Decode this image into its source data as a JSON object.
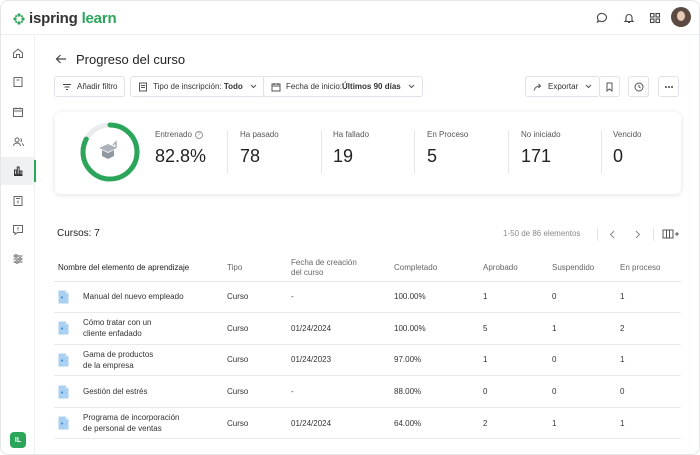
{
  "app": {
    "logo_text_1": "ispring",
    "logo_text_2": " learn",
    "brand_color": "#2aa55a",
    "user_initials": "IL"
  },
  "topbar_icons": [
    "chat-icon",
    "bell-icon",
    "apps-grid-icon",
    "user-avatar"
  ],
  "sidebar": {
    "items": [
      {
        "icon": "home-icon"
      },
      {
        "icon": "book-icon"
      },
      {
        "icon": "calendar-icon"
      },
      {
        "icon": "users-icon"
      },
      {
        "icon": "reports-icon",
        "active": true
      },
      {
        "icon": "certificate-icon"
      },
      {
        "icon": "feedback-icon"
      },
      {
        "icon": "settings-sliders-icon"
      }
    ]
  },
  "header": {
    "title": "Progreso del curso"
  },
  "toolbar": {
    "add_filter": "Añadir filtro",
    "enrollment_label": "Tipo de inscripción: ",
    "enrollment_value": "Todo",
    "start_date_label": "Fecha de inicio:",
    "start_date_value": "Últimos 90 días",
    "export": "Exportar"
  },
  "stats": {
    "progress_fraction": 0.828,
    "items": [
      {
        "label": "Entrenado",
        "value": "82.8%"
      },
      {
        "label": "Ha pasado",
        "value": "78"
      },
      {
        "label": "Ha fallado",
        "value": "19"
      },
      {
        "label": "En Proceso",
        "value": "5"
      },
      {
        "label": "No iniciado",
        "value": "171"
      },
      {
        "label": "Vencido",
        "value": "0"
      }
    ]
  },
  "table": {
    "count_label": "Cursos: 7",
    "pagination": "1-50 de 86 elementos",
    "columns": [
      "Nombre del elemento de aprendizaje",
      "Tipo",
      "Fecha de creación",
      "del curso",
      "Completado",
      "Aprobado",
      "Suspendido",
      "En proceso"
    ],
    "rows": [
      {
        "name1": "Manual del nuevo empleado",
        "name2": "",
        "type": "Curso",
        "date": "-",
        "completed": "100.00%",
        "passed": "1",
        "failed": "0",
        "in_progress": "1"
      },
      {
        "name1": "Cómo tratar con un",
        "name2": "cliente enfadado",
        "type": "Curso",
        "date": "01/24/2024",
        "completed": "100.00%",
        "passed": "5",
        "failed": "1",
        "in_progress": "2"
      },
      {
        "name1": "Gama de productos",
        "name2": "de la empresa",
        "type": "Curso",
        "date": "01/24/2023",
        "completed": "97.00%",
        "passed": "1",
        "failed": "0",
        "in_progress": "1"
      },
      {
        "name1": "Gestión del estrés",
        "name2": "",
        "type": "Curso",
        "date": "-",
        "completed": "88.00%",
        "passed": "0",
        "failed": "0",
        "in_progress": "0"
      },
      {
        "name1": "Programa de incorporación",
        "name2": "de personal de ventas",
        "type": "Curso",
        "date": "01/24/2024",
        "completed": "64.00%",
        "passed": "2",
        "failed": "1",
        "in_progress": "1"
      }
    ]
  }
}
